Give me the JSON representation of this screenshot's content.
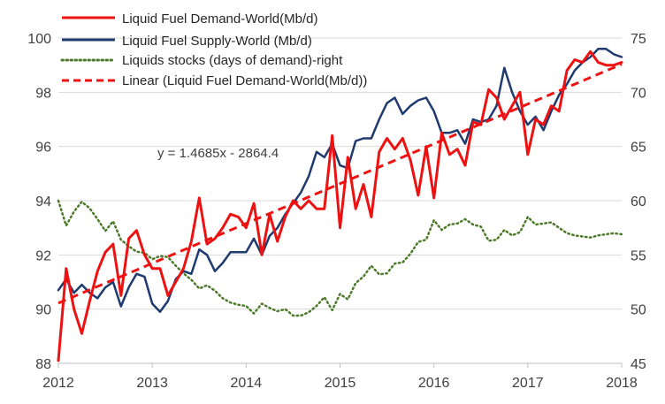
{
  "chart_data": {
    "type": "line",
    "title": "",
    "xlabel": "",
    "ylabel": "",
    "y2label": "",
    "x_ticks": [
      "2012",
      "2013",
      "2014",
      "2015",
      "2016",
      "2017",
      "2018"
    ],
    "xlim": [
      2012,
      2018
    ],
    "y_ticks": [
      "88",
      "90",
      "92",
      "94",
      "96",
      "98",
      "100"
    ],
    "ylim": [
      88,
      100
    ],
    "y2_ticks": [
      "45",
      "50",
      "55",
      "60",
      "65",
      "70",
      "75"
    ],
    "y2lim": [
      45,
      75
    ],
    "grid": true,
    "legend_position": "top-left",
    "annotation": "y = 1.4685x - 2864.4",
    "colors": {
      "demand": "#ee1111",
      "supply": "#1f3a6e",
      "stocks": "#4d7a2a",
      "grid": "#d9d9d9",
      "axis": "#bfbfbf"
    },
    "series": [
      {
        "name": "Liquid Fuel Demand-World(Mb/d)",
        "axis": "left",
        "style": "solid",
        "x": [
          2012.0,
          2012.083,
          2012.167,
          2012.25,
          2012.333,
          2012.417,
          2012.5,
          2012.583,
          2012.667,
          2012.75,
          2012.833,
          2012.917,
          2013.0,
          2013.083,
          2013.167,
          2013.25,
          2013.333,
          2013.417,
          2013.5,
          2013.583,
          2013.667,
          2013.75,
          2013.833,
          2013.917,
          2014.0,
          2014.083,
          2014.167,
          2014.25,
          2014.333,
          2014.417,
          2014.5,
          2014.583,
          2014.667,
          2014.75,
          2014.833,
          2014.917,
          2015.0,
          2015.083,
          2015.167,
          2015.25,
          2015.333,
          2015.417,
          2015.5,
          2015.583,
          2015.667,
          2015.75,
          2015.833,
          2015.917,
          2016.0,
          2016.083,
          2016.167,
          2016.25,
          2016.333,
          2016.417,
          2016.5,
          2016.583,
          2016.667,
          2016.75,
          2016.833,
          2016.917,
          2017.0,
          2017.083,
          2017.167,
          2017.25,
          2017.333,
          2017.417,
          2017.5,
          2017.583,
          2017.667,
          2017.75,
          2017.833,
          2017.917,
          2018.0
        ],
        "values": [
          88.1,
          91.5,
          90.0,
          89.1,
          90.3,
          91.4,
          92.1,
          92.4,
          90.5,
          92.6,
          92.9,
          92.0,
          91.5,
          91.5,
          90.5,
          91.0,
          91.5,
          92.5,
          94.1,
          92.4,
          92.6,
          93.0,
          93.5,
          93.4,
          93.0,
          93.9,
          92.0,
          93.5,
          92.5,
          93.4,
          94.0,
          93.7,
          94.0,
          93.7,
          93.7,
          96.4,
          93.0,
          95.6,
          93.7,
          94.6,
          93.4,
          95.8,
          96.3,
          95.9,
          96.3,
          95.5,
          94.2,
          96.0,
          94.1,
          96.5,
          95.7,
          95.9,
          95.3,
          96.9,
          96.8,
          98.1,
          97.8,
          97.0,
          97.5,
          98.0,
          95.7,
          97.0,
          96.8,
          97.5,
          97.3,
          98.8,
          99.2,
          99.1,
          99.5,
          99.1,
          99.0,
          99.0,
          99.1
        ]
      },
      {
        "name": "Liquid Fuel Supply-World (Mb/d)",
        "axis": "left",
        "style": "solid",
        "x": [
          2012.0,
          2012.083,
          2012.167,
          2012.25,
          2012.333,
          2012.417,
          2012.5,
          2012.583,
          2012.667,
          2012.75,
          2012.833,
          2012.917,
          2013.0,
          2013.083,
          2013.167,
          2013.25,
          2013.333,
          2013.417,
          2013.5,
          2013.583,
          2013.667,
          2013.75,
          2013.833,
          2013.917,
          2014.0,
          2014.083,
          2014.167,
          2014.25,
          2014.333,
          2014.417,
          2014.5,
          2014.583,
          2014.667,
          2014.75,
          2014.833,
          2014.917,
          2015.0,
          2015.083,
          2015.167,
          2015.25,
          2015.333,
          2015.417,
          2015.5,
          2015.583,
          2015.667,
          2015.75,
          2015.833,
          2015.917,
          2016.0,
          2016.083,
          2016.167,
          2016.25,
          2016.333,
          2016.417,
          2016.5,
          2016.583,
          2016.667,
          2016.75,
          2016.833,
          2016.917,
          2017.0,
          2017.083,
          2017.167,
          2017.25,
          2017.333,
          2017.417,
          2017.5,
          2017.583,
          2017.667,
          2017.75,
          2017.833,
          2017.917,
          2018.0
        ],
        "values": [
          90.7,
          91.1,
          90.6,
          90.9,
          90.6,
          90.4,
          90.8,
          91.0,
          90.1,
          90.8,
          91.3,
          91.2,
          90.2,
          89.9,
          90.3,
          91.1,
          91.4,
          91.3,
          92.2,
          92.0,
          91.4,
          91.7,
          92.1,
          92.1,
          92.1,
          92.6,
          92.0,
          92.7,
          93.0,
          93.5,
          93.9,
          94.3,
          94.9,
          95.8,
          95.6,
          96.1,
          95.3,
          95.2,
          96.2,
          96.3,
          96.3,
          97.0,
          97.6,
          97.8,
          97.2,
          97.5,
          97.7,
          97.8,
          97.3,
          96.5,
          96.5,
          96.6,
          96.1,
          97.0,
          96.9,
          97.0,
          97.5,
          98.9,
          98.0,
          97.3,
          96.8,
          97.1,
          96.6,
          97.3,
          97.9,
          98.3,
          98.8,
          99.1,
          99.3,
          99.6,
          99.6,
          99.4,
          99.3
        ]
      },
      {
        "name": "Liquids stocks (days of demand)-right",
        "axis": "right",
        "style": "dotted",
        "x": [
          2012.0,
          2012.083,
          2012.167,
          2012.25,
          2012.333,
          2012.417,
          2012.5,
          2012.583,
          2012.667,
          2012.75,
          2012.833,
          2012.917,
          2013.0,
          2013.083,
          2013.167,
          2013.25,
          2013.333,
          2013.417,
          2013.5,
          2013.583,
          2013.667,
          2013.75,
          2013.833,
          2013.917,
          2014.0,
          2014.083,
          2014.167,
          2014.25,
          2014.333,
          2014.417,
          2014.5,
          2014.583,
          2014.667,
          2014.75,
          2014.833,
          2014.917,
          2015.0,
          2015.083,
          2015.167,
          2015.25,
          2015.333,
          2015.417,
          2015.5,
          2015.583,
          2015.667,
          2015.75,
          2015.833,
          2015.917,
          2016.0,
          2016.083,
          2016.167,
          2016.25,
          2016.333,
          2016.417,
          2016.5,
          2016.583,
          2016.667,
          2016.75,
          2016.833,
          2016.917,
          2017.0,
          2017.083,
          2017.167,
          2017.25,
          2017.333,
          2017.417,
          2017.5,
          2017.583,
          2017.667,
          2017.75,
          2017.833,
          2017.917,
          2018.0
        ],
        "values": [
          60.0,
          57.7,
          59.0,
          59.9,
          59.3,
          58.3,
          57.2,
          58.1,
          56.4,
          55.8,
          55.3,
          55.2,
          54.6,
          54.9,
          54.8,
          54.0,
          53.3,
          52.7,
          51.9,
          52.2,
          51.7,
          51.0,
          50.6,
          50.4,
          50.3,
          49.6,
          50.5,
          50.1,
          49.8,
          50.0,
          49.4,
          49.4,
          49.7,
          50.3,
          51.1,
          49.9,
          51.4,
          50.9,
          52.4,
          53.0,
          54.0,
          53.2,
          53.3,
          54.2,
          54.3,
          55.1,
          56.2,
          56.4,
          58.2,
          57.3,
          57.8,
          57.9,
          58.3,
          57.8,
          57.6,
          56.3,
          56.4,
          57.3,
          56.8,
          57.1,
          58.5,
          57.8,
          57.9,
          58.0,
          57.5,
          57.0,
          56.8,
          56.7,
          56.6,
          56.8,
          56.9,
          57.0,
          56.9
        ]
      }
    ],
    "trendline": {
      "name": "Linear (Liquid Fuel Demand-World(Mb/d))",
      "axis": "left",
      "style": "dashed",
      "slope": 1.4685,
      "intercept": -2864.4,
      "x_range": [
        2012.0,
        2018.0
      ]
    }
  }
}
